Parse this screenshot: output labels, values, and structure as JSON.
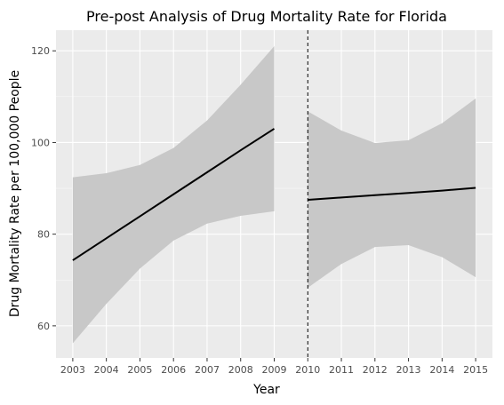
{
  "chart_data": {
    "type": "line",
    "title": "Pre-post Analysis of Drug Mortality Rate for Florida",
    "xlabel": "Year",
    "ylabel": "Drug Mortality Rate per 100,000 People",
    "xlim": [
      2002.5,
      2015.5
    ],
    "ylim": [
      53,
      124.5
    ],
    "x_ticks": [
      2003,
      2004,
      2005,
      2006,
      2007,
      2008,
      2009,
      2010,
      2011,
      2012,
      2013,
      2014,
      2015
    ],
    "x_tick_labels": [
      "2003",
      "2004",
      "2005",
      "2006",
      "2007",
      "2008",
      "2009",
      "2010",
      "2011",
      "2012",
      "2013",
      "2014",
      "2015"
    ],
    "y_ticks": [
      60,
      80,
      100,
      120
    ],
    "y_tick_labels": [
      "60",
      "80",
      "100",
      "120"
    ],
    "intervention_year": 2010,
    "grid": true,
    "series": [
      {
        "segment": "pre",
        "x": [
          2003,
          2004,
          2005,
          2006,
          2007,
          2008,
          2009
        ],
        "fit": [
          74.3,
          79.1,
          83.9,
          88.7,
          93.5,
          98.3,
          103.0
        ],
        "lower": [
          56.2,
          64.8,
          72.5,
          78.6,
          82.3,
          84.0,
          85.0
        ],
        "upper": [
          92.4,
          93.3,
          95.1,
          98.8,
          104.8,
          112.6,
          121.0
        ]
      },
      {
        "segment": "post",
        "x": [
          2010,
          2011,
          2012,
          2013,
          2014,
          2015
        ],
        "fit": [
          87.5,
          88.0,
          88.5,
          89.0,
          89.5,
          90.1
        ],
        "lower": [
          68.3,
          73.5,
          77.2,
          77.6,
          75.0,
          70.6
        ],
        "upper": [
          106.8,
          102.6,
          99.9,
          100.5,
          104.2,
          109.6
        ]
      }
    ],
    "colors": {
      "panel": "#ebebeb",
      "grid_major": "#ffffff",
      "ribbon": "#c8c8c8",
      "line": "#000000",
      "intervention_line": "#000000"
    }
  }
}
